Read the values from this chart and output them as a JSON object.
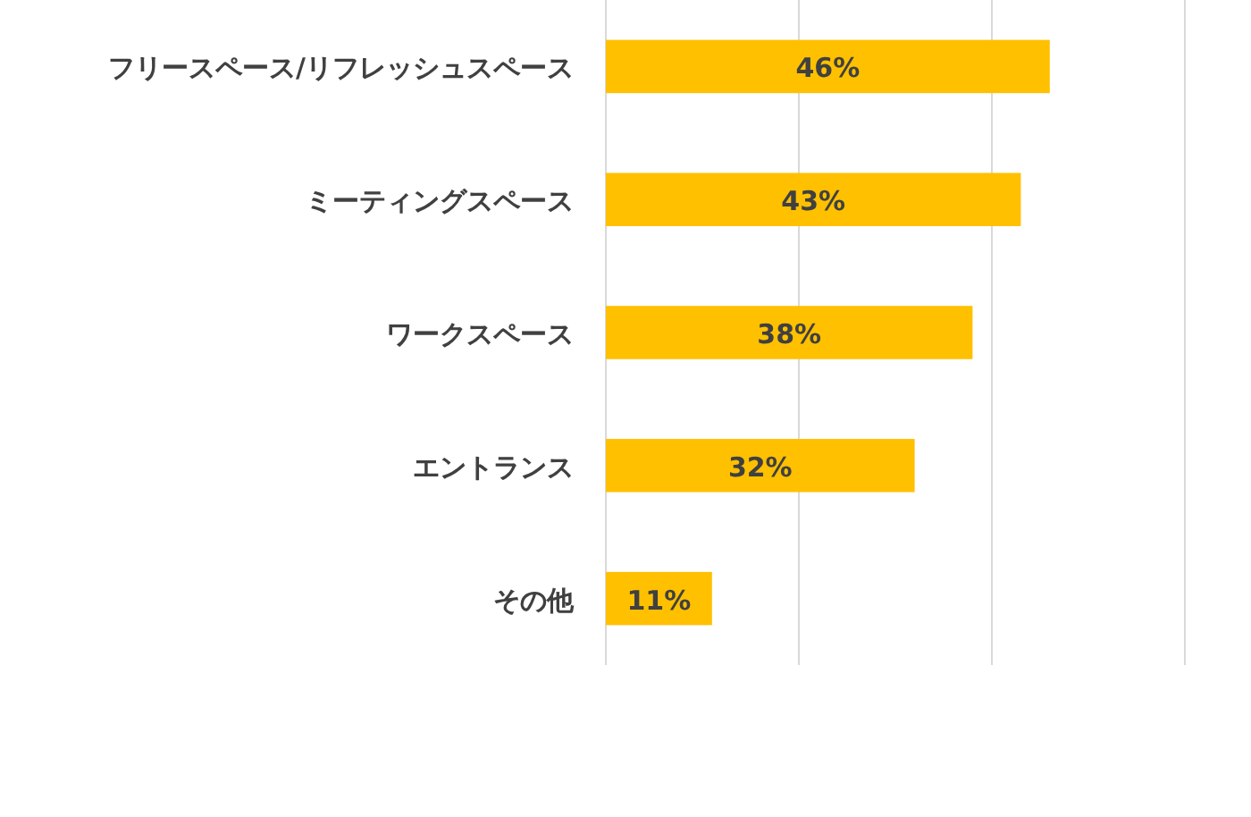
{
  "chart_data": {
    "type": "bar",
    "orientation": "horizontal",
    "categories": [
      "フリースペース/リフレッシュスペース",
      "ミーティングスペース",
      "ワークスペース",
      "エントランス",
      "その他"
    ],
    "values": [
      46,
      43,
      38,
      32,
      11
    ],
    "color": "#ffc000",
    "value_labels": [
      "46%",
      "43%",
      "38%",
      "32%",
      "11%"
    ],
    "grid": "x",
    "xlim": [
      0,
      60
    ],
    "xticks": [
      {
        "value": 0,
        "label": null
      },
      {
        "value": 20,
        "label": null
      },
      {
        "value": 40,
        "label": null
      },
      {
        "value": 60,
        "label": null
      }
    ],
    "tick_labels": "y"
  }
}
